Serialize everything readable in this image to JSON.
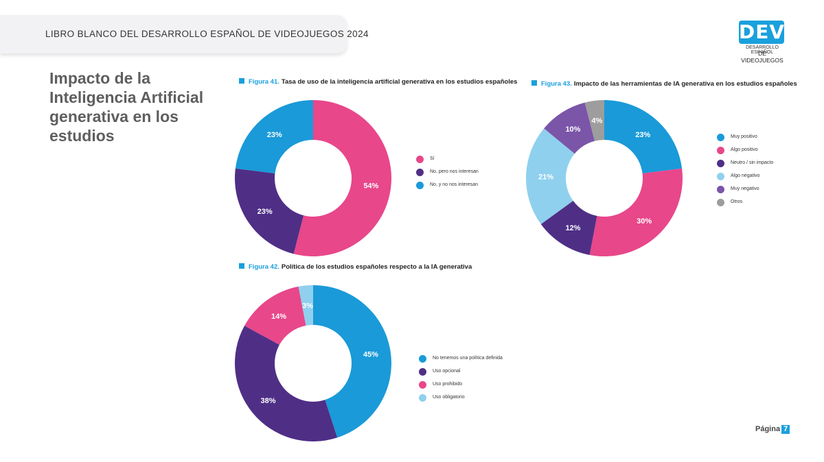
{
  "header": {
    "title": "LIBRO BLANCO DEL DESARROLLO ESPAÑOL DE VIDEOJUEGOS 2024"
  },
  "logo": {
    "mark": "DEV",
    "line1": "DESARROLLO ESPAÑOL",
    "line2": "DE VIDEOJUEGOS",
    "color": "#1aa0dc"
  },
  "page_title": "Impacto de la Inteligencia Artificial generativa en los estudios",
  "footer": {
    "label": "Página",
    "number": "7"
  },
  "chart_data": [
    {
      "id": "fig41",
      "type": "pie",
      "figure_label": "Figura 41.",
      "title": "Tasa de uso de la inteligencia artificial generativa en los estudios españoles",
      "legend_position": "right",
      "slices": [
        {
          "name": "Sí",
          "value": 54,
          "label": "54%",
          "color": "#e8478a",
          "label_color": "#ffffff"
        },
        {
          "name": "No, pero nos interesan",
          "value": 23,
          "label": "23%",
          "color": "#4f2f86",
          "label_color": "#ffffff"
        },
        {
          "name": "No, y no nos interesan",
          "value": 23,
          "label": "23%",
          "color": "#1a9ad8",
          "label_color": "#ffffff"
        }
      ]
    },
    {
      "id": "fig43",
      "type": "pie",
      "figure_label": "Figura 43.",
      "title": "Impacto de las herramientas de IA generativa en los estudios españoles",
      "legend_position": "right",
      "slices": [
        {
          "name": "Muy positivo",
          "value": 23,
          "label": "23%",
          "color": "#1a9ad8",
          "label_color": "#ffffff"
        },
        {
          "name": "Algo positivo",
          "value": 30,
          "label": "30%",
          "color": "#e8478a",
          "label_color": "#ffffff"
        },
        {
          "name": "Neutro / sin impacto",
          "value": 12,
          "label": "12%",
          "color": "#4f2f86",
          "label_color": "#ffffff"
        },
        {
          "name": "Algo negativo",
          "value": 21,
          "label": "21%",
          "color": "#8fd0ee",
          "label_color": "#ffffff"
        },
        {
          "name": "Muy negativo",
          "value": 10,
          "label": "10%",
          "color": "#7b55a8",
          "label_color": "#ffffff"
        },
        {
          "name": "Otros",
          "value": 4,
          "label": "4%",
          "color": "#9d9d9d",
          "label_color": "#ffffff"
        }
      ]
    },
    {
      "id": "fig42",
      "type": "pie",
      "figure_label": "Figura 42.",
      "title": "Política de los estudios españoles respecto a la IA generativa",
      "legend_position": "right",
      "slices": [
        {
          "name": "No tenemos una política definida",
          "value": 45,
          "label": "45%",
          "color": "#1a9ad8",
          "label_color": "#ffffff"
        },
        {
          "name": "Uso opcional",
          "value": 38,
          "label": "38%",
          "color": "#4f2f86",
          "label_color": "#ffffff"
        },
        {
          "name": "Uso prohibido",
          "value": 14,
          "label": "14%",
          "color": "#e8478a",
          "label_color": "#ffffff"
        },
        {
          "name": "Uso obligatorio",
          "value": 3,
          "label": "3%",
          "color": "#8fd0ee",
          "label_color": "#ffffff"
        }
      ]
    }
  ]
}
